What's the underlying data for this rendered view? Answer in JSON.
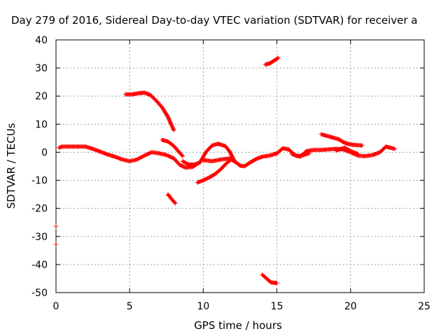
{
  "chart_data": {
    "type": "scatter",
    "title": "Day 279 of 2016, Sidereal Day-to-day VTEC variation (SDTVAR) for receiver a",
    "xlabel": "GPS time / hours",
    "ylabel": "SDTVAR / TECUs",
    "xlim": [
      0,
      25
    ],
    "ylim": [
      -50,
      40
    ],
    "xticks": [
      "0",
      "5",
      "10",
      "15",
      "20",
      "25"
    ],
    "yticks": [
      "40",
      "30",
      "20",
      "10",
      "0",
      "-10",
      "-20",
      "-30",
      "-40",
      "-50"
    ],
    "grid": true,
    "marker_color": "#ff0000",
    "series": [
      {
        "segments": [
          [
            [
              0.2,
              1.6
            ],
            [
              0.4,
              2.0
            ],
            [
              1.0,
              2.0
            ],
            [
              1.5,
              2.0
            ],
            [
              2.0,
              2.0
            ],
            [
              2.5,
              1.2
            ],
            [
              3.0,
              0.2
            ],
            [
              3.5,
              -0.8
            ],
            [
              4.0,
              -1.6
            ],
            [
              4.5,
              -2.6
            ],
            [
              5.0,
              -3.2
            ],
            [
              5.5,
              -2.6
            ],
            [
              6.0,
              -1.2
            ],
            [
              6.5,
              0.0
            ],
            [
              7.0,
              -0.4
            ],
            [
              7.5,
              -1.0
            ],
            [
              8.0,
              -2.2
            ],
            [
              8.4,
              -4.5
            ],
            [
              8.8,
              -5.5
            ],
            [
              9.3,
              -5.2
            ],
            [
              9.8,
              -3.4
            ],
            [
              10.2,
              0.2
            ],
            [
              10.6,
              2.4
            ],
            [
              11.0,
              3.0
            ],
            [
              11.5,
              2.2
            ],
            [
              11.8,
              0.2
            ],
            [
              12.1,
              -3.0
            ],
            [
              12.5,
              -4.8
            ],
            [
              12.8,
              -5.0
            ],
            [
              13.2,
              -3.6
            ],
            [
              13.6,
              -2.4
            ],
            [
              14.0,
              -1.6
            ],
            [
              14.5,
              -1.2
            ],
            [
              15.0,
              -0.4
            ],
            [
              15.4,
              1.4
            ],
            [
              15.8,
              1.0
            ],
            [
              16.2,
              -1.0
            ],
            [
              16.6,
              -1.6
            ],
            [
              17.0,
              0.4
            ],
            [
              17.5,
              0.8
            ],
            [
              18.0,
              0.8
            ],
            [
              18.5,
              1.0
            ],
            [
              19.0,
              1.2
            ],
            [
              19.5,
              1.0
            ],
            [
              20.0,
              0.0
            ],
            [
              20.5,
              -1.2
            ],
            [
              21.0,
              -1.4
            ],
            [
              21.5,
              -1.0
            ],
            [
              22.0,
              0.0
            ],
            [
              22.4,
              2.0
            ],
            [
              22.7,
              1.6
            ],
            [
              23.0,
              1.2
            ]
          ],
          [
            [
              4.7,
              20.6
            ],
            [
              5.2,
              20.6
            ],
            [
              5.6,
              21.0
            ],
            [
              6.0,
              21.2
            ],
            [
              6.4,
              20.4
            ],
            [
              6.8,
              18.4
            ],
            [
              7.2,
              16.0
            ],
            [
              7.6,
              12.6
            ],
            [
              8.0,
              7.8
            ]
          ],
          [
            [
              7.2,
              4.4
            ],
            [
              7.6,
              3.8
            ],
            [
              8.0,
              2.2
            ],
            [
              8.3,
              0.4
            ],
            [
              8.6,
              -1.4
            ]
          ],
          [
            [
              7.6,
              -15.0
            ],
            [
              7.8,
              -16.4
            ],
            [
              8.1,
              -18.2
            ]
          ],
          [
            [
              8.6,
              -3.2
            ],
            [
              9.0,
              -4.4
            ],
            [
              9.4,
              -4.4
            ],
            [
              9.8,
              -3.6
            ]
          ],
          [
            [
              9.6,
              -10.8
            ],
            [
              10.0,
              -10.0
            ],
            [
              10.4,
              -9.0
            ],
            [
              10.8,
              -7.8
            ],
            [
              11.2,
              -6.0
            ],
            [
              11.6,
              -3.8
            ],
            [
              11.9,
              -2.6
            ]
          ],
          [
            [
              10.0,
              -2.8
            ],
            [
              10.6,
              -3.2
            ],
            [
              11.2,
              -2.6
            ],
            [
              11.8,
              -2.2
            ],
            [
              12.2,
              -3.6
            ]
          ],
          [
            [
              14.2,
              31.2
            ],
            [
              14.5,
              31.6
            ],
            [
              14.8,
              32.6
            ],
            [
              15.1,
              33.6
            ]
          ],
          [
            [
              14.0,
              -43.6
            ],
            [
              14.3,
              -45.0
            ],
            [
              14.6,
              -46.4
            ],
            [
              15.0,
              -46.6
            ]
          ],
          [
            [
              18.0,
              6.4
            ],
            [
              18.4,
              5.8
            ],
            [
              18.8,
              5.2
            ],
            [
              19.2,
              4.6
            ],
            [
              19.5,
              3.6
            ],
            [
              19.8,
              3.0
            ],
            [
              20.2,
              2.6
            ],
            [
              20.8,
              2.4
            ]
          ],
          [
            [
              16.0,
              -0.6
            ],
            [
              16.4,
              -1.4
            ],
            [
              16.8,
              -1.0
            ],
            [
              17.2,
              -0.4
            ]
          ],
          [
            [
              19.0,
              0.6
            ],
            [
              19.6,
              1.6
            ],
            [
              20.0,
              0.4
            ],
            [
              20.5,
              -0.6
            ]
          ],
          [
            [
              0.0,
              -26.4
            ]
          ],
          [
            [
              0.0,
              -32.8
            ]
          ]
        ]
      }
    ]
  }
}
